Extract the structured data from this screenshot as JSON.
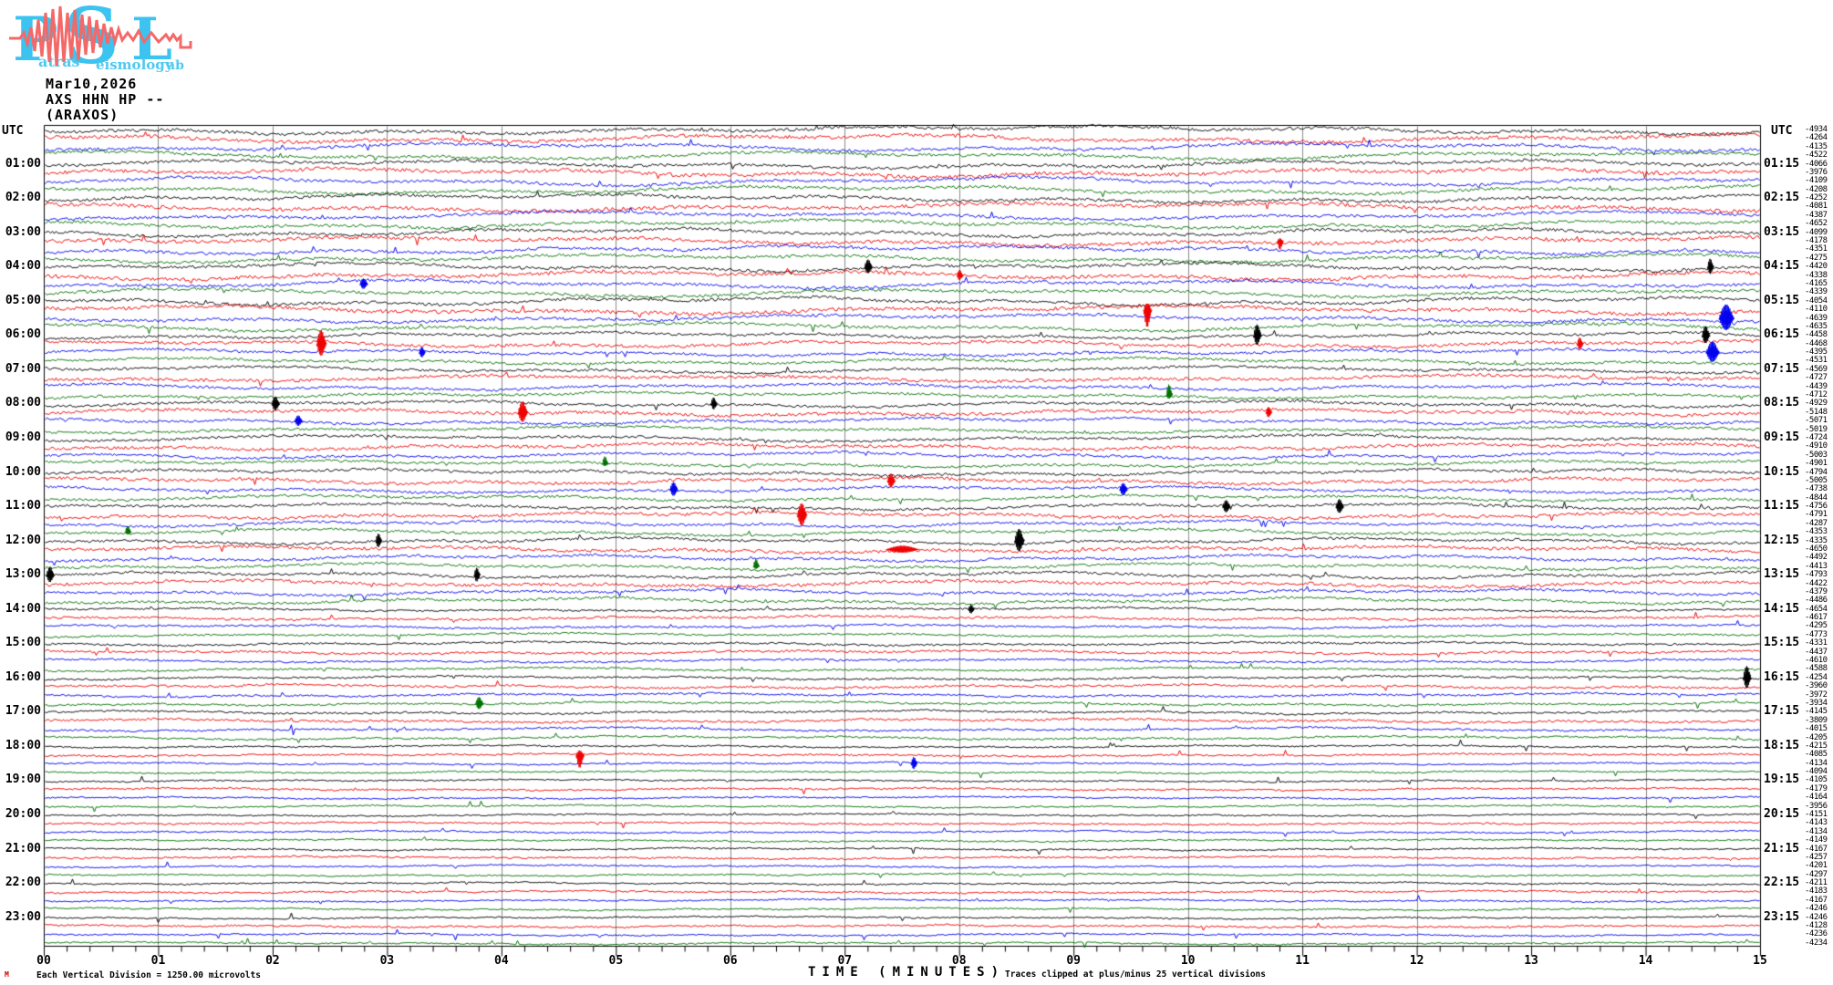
{
  "logo": {
    "letters": [
      "P",
      "S",
      "L"
    ],
    "words": [
      "atras",
      "eismology",
      "ab"
    ],
    "letter_color": "#3cc3f0",
    "wave_color": "#f46868"
  },
  "header": {
    "date": "Mar10,2026",
    "channel": "AXS HHN HP --",
    "station": "(ARAXOS)"
  },
  "axis": {
    "utc_label": "UTC",
    "minute_labels": [
      "00",
      "01",
      "02",
      "03",
      "04",
      "05",
      "06",
      "07",
      "08",
      "09",
      "10",
      "11",
      "12",
      "13",
      "14",
      "15"
    ],
    "xlabel": "TIME (MINUTES)",
    "clip_note": "Traces clipped at plus/minus 25 vertical divisions",
    "scale_note": "Each Vertical Division = 1250.00 microvolts",
    "corner_mark": "M"
  },
  "time_labels": {
    "left": [
      "01:00",
      "02:00",
      "03:00",
      "04:00",
      "05:00",
      "06:00",
      "07:00",
      "08:00",
      "09:00",
      "10:00",
      "11:00",
      "12:00",
      "13:00",
      "14:00",
      "15:00",
      "16:00",
      "17:00",
      "18:00",
      "19:00",
      "20:00",
      "21:00",
      "22:00",
      "23:00"
    ],
    "right": [
      "01:15",
      "02:15",
      "03:15",
      "04:15",
      "05:15",
      "06:15",
      "07:15",
      "08:15",
      "09:15",
      "10:15",
      "11:15",
      "12:15",
      "13:15",
      "14:15",
      "15:15",
      "16:15",
      "17:15",
      "18:15",
      "19:15",
      "20:15",
      "21:15",
      "22:15",
      "23:15"
    ]
  },
  "colors": {
    "trace_cycle": [
      "#000000",
      "#ee0000",
      "#0000ee",
      "#007000"
    ],
    "grid": "#8a8a8a",
    "border": "#000000"
  },
  "chart_data": {
    "type": "line",
    "subtype": "helicorder-seismogram",
    "title": "AXS HHN HP -- (ARAXOS) Mar10,2026",
    "xlabel": "TIME (MINUTES)",
    "x_range": [
      0,
      15
    ],
    "hours": 24,
    "traces_per_hour": 4,
    "trace_duration_minutes": 15,
    "color_cycle": [
      "black",
      "red",
      "blue",
      "green"
    ],
    "grid": "vertical lines every 1 minute",
    "clip": "Traces clipped at plus/minus 25 vertical divisions",
    "scale": "Each Vertical Division = 1250.00 microvolts",
    "trace_offsets": [
      -4934,
      -4264,
      -4135,
      -4522,
      -4066,
      -3976,
      -4109,
      -4208,
      -4252,
      -4081,
      -4387,
      -4652,
      -4099,
      -4178,
      -4351,
      -4275,
      -4420,
      -4338,
      -4165,
      -4339,
      -4054,
      -4110,
      -4639,
      -4635,
      -4458,
      -4468,
      -4395,
      -4531,
      -4569,
      -4727,
      -4439,
      -4712,
      -4929,
      -5148,
      -5071,
      -5019,
      -4724,
      -4910,
      -5003,
      -4901,
      -4794,
      -5005,
      -4738,
      -4844,
      -4756,
      -4791,
      -4287,
      -4353,
      -4335,
      -4650,
      -4492,
      -4413,
      -4793,
      -4422,
      -4379,
      -4486,
      -4654,
      -4617,
      -4295,
      -4773,
      -4331,
      -4437,
      -4610,
      -4588,
      -4254,
      -3960,
      -3972,
      -3934,
      -4145,
      -3809,
      -4015,
      -4205,
      -4215,
      -4085,
      -4134,
      -4094,
      -4105,
      -4179,
      -4164,
      -3956,
      -4151,
      -4143,
      -4134,
      -4149,
      -4167,
      -4257,
      -4201,
      -4297,
      -4211,
      -4183,
      -4167,
      -4246,
      -4246,
      -4128,
      -4236,
      -4234
    ],
    "events": [
      {
        "h": 3,
        "c": 1,
        "m": 10.8,
        "amp": 9,
        "w": 3,
        "dir": -1
      },
      {
        "h": 6,
        "c": 1,
        "m": 2.42,
        "amp": 15,
        "w": 5,
        "dir": 0
      },
      {
        "h": 4,
        "c": 2,
        "m": 2.79,
        "amp": 6,
        "w": 4,
        "dir": 0
      },
      {
        "h": 6,
        "c": 2,
        "m": 3.3,
        "amp": 6,
        "w": 3,
        "dir": 0
      },
      {
        "h": 4,
        "c": 0,
        "m": 7.2,
        "amp": 8,
        "w": 4,
        "dir": 0
      },
      {
        "h": 4,
        "c": 1,
        "m": 8.0,
        "amp": 6,
        "w": 3,
        "dir": 0
      },
      {
        "h": 6,
        "c": 0,
        "m": 10.6,
        "amp": 12,
        "w": 4,
        "dir": 0
      },
      {
        "h": 5,
        "c": 2,
        "m": 14.7,
        "amp": 15,
        "w": 8,
        "dir": 0
      },
      {
        "h": 6,
        "c": 2,
        "m": 14.58,
        "amp": 12,
        "w": 7,
        "dir": 0
      },
      {
        "h": 6,
        "c": 0,
        "m": 14.52,
        "amp": 10,
        "w": 4,
        "dir": 0
      },
      {
        "h": 4,
        "c": 0,
        "m": 14.56,
        "amp": 9,
        "w": 3,
        "dir": 0
      },
      {
        "h": 6,
        "c": 1,
        "m": 13.42,
        "amp": 7,
        "w": 3,
        "dir": 0
      },
      {
        "h": 8,
        "c": 0,
        "m": 2.02,
        "amp": 8,
        "w": 4,
        "dir": 0
      },
      {
        "h": 8,
        "c": 2,
        "m": 2.22,
        "amp": 6,
        "w": 4,
        "dir": 0
      },
      {
        "h": 8,
        "c": 1,
        "m": 4.18,
        "amp": 12,
        "w": 5,
        "dir": 0
      },
      {
        "h": 8,
        "c": 0,
        "m": 5.85,
        "amp": 7,
        "w": 3,
        "dir": 0
      },
      {
        "h": 5,
        "c": 1,
        "m": 9.64,
        "amp": 19,
        "w": 4,
        "dir": -1
      },
      {
        "h": 8,
        "c": 1,
        "m": 10.7,
        "amp": 6,
        "w": 3,
        "dir": 0
      },
      {
        "h": 7,
        "c": 3,
        "m": 9.83,
        "amp": 12,
        "w": 3,
        "dir": 1
      },
      {
        "h": 9,
        "c": 3,
        "m": 4.9,
        "amp": 8,
        "w": 3,
        "dir": 1
      },
      {
        "h": 10,
        "c": 2,
        "m": 5.5,
        "amp": 8,
        "w": 4,
        "dir": 0
      },
      {
        "h": 10,
        "c": 1,
        "m": 7.4,
        "amp": 8,
        "w": 4,
        "dir": 0
      },
      {
        "h": 10,
        "c": 2,
        "m": 9.43,
        "amp": 7,
        "w": 4,
        "dir": 0
      },
      {
        "h": 11,
        "c": 3,
        "m": 0.73,
        "amp": 7,
        "w": 3,
        "dir": 1
      },
      {
        "h": 11,
        "c": 1,
        "m": 6.62,
        "amp": 13,
        "w": 5,
        "dir": 0
      },
      {
        "h": 11,
        "c": 0,
        "m": 10.33,
        "amp": 7,
        "w": 4,
        "dir": 0
      },
      {
        "h": 11,
        "c": 0,
        "m": 11.32,
        "amp": 8,
        "w": 4,
        "dir": 0
      },
      {
        "h": 12,
        "c": 0,
        "m": 2.92,
        "amp": 8,
        "w": 3,
        "dir": 0
      },
      {
        "h": 12,
        "c": 1,
        "m": 7.5,
        "amp": 4,
        "w": 18,
        "dir": 0
      },
      {
        "h": 12,
        "c": 0,
        "m": 8.52,
        "amp": 13,
        "w": 5,
        "dir": 0
      },
      {
        "h": 13,
        "c": 0,
        "m": 0.05,
        "amp": 9,
        "w": 4,
        "dir": 0
      },
      {
        "h": 13,
        "c": 0,
        "m": 3.78,
        "amp": 8,
        "w": 3,
        "dir": 0
      },
      {
        "h": 12,
        "c": 3,
        "m": 6.22,
        "amp": 8,
        "w": 3,
        "dir": 1
      },
      {
        "h": 14,
        "c": 0,
        "m": 8.1,
        "amp": 5,
        "w": 3,
        "dir": 0
      },
      {
        "h": 16,
        "c": 3,
        "m": 3.8,
        "amp": 7,
        "w": 4,
        "dir": 0
      },
      {
        "h": 16,
        "c": 0,
        "m": 14.88,
        "amp": 13,
        "w": 4,
        "dir": 0
      },
      {
        "h": 18,
        "c": 1,
        "m": 4.68,
        "amp": 14,
        "w": 4,
        "dir": -1
      },
      {
        "h": 18,
        "c": 2,
        "m": 7.6,
        "amp": 7,
        "w": 3,
        "dir": 0
      }
    ]
  }
}
